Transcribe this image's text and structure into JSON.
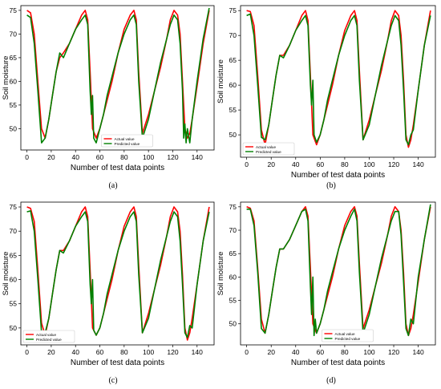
{
  "figure": {
    "panel_labels": [
      "(a)",
      "(b)",
      "(c)",
      "(d)"
    ]
  },
  "colors": {
    "actual": "#ff0000",
    "predicted": "#008000",
    "axis": "#000000"
  },
  "chart_data": [
    {
      "type": "line",
      "panel": "(a)",
      "xlabel": "Number of test data points",
      "ylabel": "Soil moisture",
      "xlim": [
        -5,
        154
      ],
      "ylim": [
        45.5,
        76
      ],
      "xticks": [
        0,
        20,
        40,
        60,
        80,
        100,
        120,
        140
      ],
      "yticks": [
        50,
        55,
        60,
        65,
        70,
        75
      ],
      "legend": "bottom-center",
      "grid": false,
      "series": [
        {
          "name": "Actual value",
          "color": "#ff0000",
          "x": [
            0,
            3,
            6,
            9,
            12,
            15,
            18,
            21,
            24,
            27,
            30,
            35,
            40,
            45,
            48,
            50,
            52,
            54,
            57,
            60,
            63,
            66,
            70,
            75,
            80,
            85,
            88,
            90,
            92,
            95,
            100,
            105,
            110,
            115,
            118,
            121,
            124,
            126,
            128,
            130,
            132,
            134,
            136,
            140,
            145,
            150
          ],
          "y": [
            75,
            74.5,
            70,
            60,
            50,
            48,
            52,
            57,
            62,
            65,
            66,
            68,
            71,
            74,
            75,
            73,
            62,
            50,
            48,
            50,
            53,
            56,
            60,
            66,
            71,
            74,
            75,
            73,
            62,
            49,
            53,
            58,
            63,
            69,
            73,
            75,
            74,
            70,
            60,
            50,
            48,
            49,
            52,
            59,
            68,
            75
          ]
        },
        {
          "name": "Predicted value",
          "color": "#008000",
          "x": [
            0,
            3,
            6,
            9,
            12,
            15,
            18,
            21,
            24,
            27,
            30,
            35,
            40,
            45,
            48,
            50,
            52,
            53,
            54,
            55,
            57,
            60,
            63,
            66,
            70,
            75,
            80,
            85,
            88,
            90,
            92,
            95,
            100,
            105,
            110,
            115,
            118,
            121,
            124,
            126,
            128,
            129,
            130,
            131,
            132,
            134,
            136,
            140,
            145,
            150
          ],
          "y": [
            74,
            73.5,
            68,
            58,
            47,
            48,
            52,
            57,
            62,
            66,
            65,
            68,
            71,
            73,
            74,
            72,
            58,
            53,
            57,
            48,
            47,
            50,
            53,
            57,
            61,
            66,
            70,
            73,
            74,
            72,
            60,
            48,
            52,
            58,
            64,
            69,
            72,
            74,
            73,
            68,
            58,
            48,
            51,
            47,
            50,
            47,
            52,
            60,
            69,
            75.5
          ]
        }
      ]
    },
    {
      "type": "line",
      "panel": "(b)",
      "xlabel": "Number of test data points",
      "ylabel": "Soil moisture",
      "xlim": [
        -5,
        154
      ],
      "ylim": [
        45.5,
        76
      ],
      "xticks": [
        0,
        20,
        40,
        60,
        80,
        100,
        120,
        140
      ],
      "yticks": [
        50,
        55,
        60,
        65,
        70,
        75
      ],
      "legend": "bottom-left",
      "grid": false,
      "series": [
        {
          "name": "Actual value",
          "color": "#ff0000",
          "x": [
            0,
            3,
            6,
            9,
            12,
            15,
            18,
            21,
            24,
            27,
            30,
            35,
            40,
            45,
            48,
            50,
            52,
            54,
            57,
            60,
            63,
            66,
            70,
            75,
            80,
            85,
            88,
            90,
            92,
            95,
            100,
            105,
            110,
            115,
            118,
            121,
            124,
            126,
            128,
            130,
            132,
            134,
            136,
            140,
            145,
            150
          ],
          "y": [
            75,
            74.8,
            72,
            62,
            51,
            48,
            52,
            57,
            62,
            66,
            66,
            68,
            71,
            74,
            75,
            73,
            62,
            50,
            48,
            50,
            53,
            56,
            60,
            66,
            71,
            74,
            75,
            73,
            63,
            49,
            53,
            58,
            63,
            69,
            73,
            75,
            74,
            70,
            61,
            50,
            47.5,
            49,
            52,
            59,
            68,
            75
          ]
        },
        {
          "name": "Predicted value",
          "color": "#008000",
          "x": [
            0,
            3,
            6,
            9,
            12,
            15,
            18,
            21,
            24,
            27,
            30,
            35,
            40,
            45,
            48,
            50,
            52,
            53,
            54,
            55,
            57,
            60,
            63,
            66,
            70,
            75,
            80,
            85,
            88,
            90,
            92,
            95,
            100,
            105,
            110,
            115,
            118,
            121,
            124,
            126,
            128,
            130,
            132,
            134,
            136,
            140,
            145,
            150
          ],
          "y": [
            74,
            74.3,
            70,
            60,
            49.5,
            49,
            52,
            57,
            62,
            66,
            65.5,
            68,
            71,
            73,
            74,
            72,
            60,
            56,
            61,
            50,
            48.5,
            50,
            53,
            57,
            61,
            66,
            70,
            73,
            74,
            72,
            61,
            49,
            52,
            58,
            64,
            69,
            72,
            74,
            73,
            68,
            59,
            49,
            48,
            50,
            51,
            59,
            68,
            74
          ]
        }
      ]
    },
    {
      "type": "line",
      "panel": "(c)",
      "xlabel": "Number of test data points",
      "ylabel": "Soil moisture",
      "xlim": [
        -5,
        154
      ],
      "ylim": [
        46.5,
        76
      ],
      "xticks": [
        0,
        20,
        40,
        60,
        80,
        100,
        120,
        140
      ],
      "yticks": [
        50,
        55,
        60,
        65,
        70,
        75
      ],
      "legend": "bottom-left",
      "grid": false,
      "series": [
        {
          "name": "Actual value",
          "color": "#ff0000",
          "x": [
            0,
            3,
            6,
            9,
            12,
            15,
            18,
            21,
            24,
            27,
            30,
            35,
            40,
            45,
            48,
            50,
            52,
            54,
            57,
            60,
            63,
            66,
            70,
            75,
            80,
            85,
            88,
            90,
            92,
            95,
            100,
            105,
            110,
            115,
            118,
            121,
            124,
            126,
            128,
            130,
            132,
            134,
            136,
            140,
            145,
            150
          ],
          "y": [
            75,
            74.7,
            72,
            62,
            51,
            48.5,
            52,
            57,
            62,
            66,
            66,
            68,
            71,
            74,
            75,
            73,
            62,
            50,
            48.5,
            50,
            53,
            56,
            60,
            66,
            71,
            74,
            75,
            73,
            63,
            49,
            53,
            58,
            63,
            69,
            73,
            75,
            74,
            70,
            61,
            50,
            47.5,
            49,
            52,
            59,
            68,
            75
          ]
        },
        {
          "name": "Predicted value",
          "color": "#008000",
          "x": [
            0,
            3,
            6,
            9,
            12,
            15,
            18,
            21,
            24,
            27,
            30,
            35,
            40,
            45,
            48,
            50,
            52,
            53,
            54,
            55,
            57,
            60,
            63,
            66,
            70,
            75,
            80,
            85,
            88,
            90,
            92,
            95,
            100,
            105,
            110,
            115,
            118,
            121,
            124,
            126,
            128,
            130,
            132,
            134,
            136,
            140,
            145,
            150
          ],
          "y": [
            74,
            74.2,
            70,
            60,
            49,
            49,
            52,
            57,
            62,
            66,
            65.5,
            68,
            71,
            73,
            74,
            72,
            59,
            55,
            60,
            49.5,
            48.5,
            50,
            53,
            57,
            61,
            66,
            70,
            73,
            74,
            72,
            61,
            49,
            52,
            58,
            64,
            69,
            72,
            74,
            73,
            68,
            59,
            49,
            48,
            50.5,
            50,
            59,
            68,
            74
          ]
        }
      ]
    },
    {
      "type": "line",
      "panel": "(d)",
      "xlabel": "Number of test data points",
      "ylabel": "Soil moisture",
      "xlim": [
        -5,
        154
      ],
      "ylim": [
        45.5,
        76
      ],
      "xticks": [
        0,
        20,
        40,
        60,
        80,
        100,
        120,
        140
      ],
      "yticks": [
        50,
        55,
        60,
        65,
        70,
        75
      ],
      "legend": "bottom-center",
      "grid": false,
      "series": [
        {
          "name": "Actual value",
          "color": "#ff0000",
          "x": [
            0,
            3,
            6,
            9,
            12,
            15,
            18,
            21,
            24,
            27,
            30,
            35,
            40,
            45,
            48,
            50,
            52,
            54,
            57,
            60,
            63,
            66,
            70,
            75,
            80,
            85,
            88,
            90,
            92,
            95,
            100,
            105,
            110,
            115,
            118,
            121,
            124,
            126,
            128,
            130,
            132,
            134,
            136,
            140,
            145,
            150
          ],
          "y": [
            75,
            74.7,
            72,
            62,
            51,
            48,
            52,
            57,
            62,
            66,
            66,
            68,
            71,
            74,
            75,
            73,
            62,
            50,
            48,
            50,
            53,
            56,
            60,
            66,
            71,
            74,
            75,
            73,
            63,
            49,
            53,
            58,
            63,
            69,
            73,
            75,
            74,
            70,
            61,
            50,
            47.5,
            49,
            52,
            59,
            68,
            75
          ]
        },
        {
          "name": "Predicted value",
          "color": "#008000",
          "x": [
            0,
            3,
            6,
            9,
            12,
            15,
            18,
            21,
            24,
            27,
            30,
            35,
            40,
            45,
            48,
            50,
            52,
            53,
            54,
            55,
            56,
            57,
            60,
            63,
            66,
            70,
            75,
            80,
            85,
            88,
            90,
            92,
            95,
            100,
            105,
            110,
            115,
            118,
            121,
            124,
            126,
            128,
            130,
            132,
            134,
            136,
            140,
            145,
            150
          ],
          "y": [
            74.5,
            74.5,
            71,
            61,
            49,
            48,
            52,
            57,
            62,
            66,
            66,
            68,
            71,
            74,
            74.5,
            72,
            58,
            52,
            60,
            47.5,
            51,
            48,
            50,
            53,
            57,
            61,
            66,
            70,
            73,
            74.5,
            72,
            61,
            48,
            52,
            58,
            64,
            69,
            72,
            74,
            74,
            69,
            59,
            49,
            47.5,
            51,
            50,
            60,
            68,
            75.5
          ]
        }
      ]
    }
  ]
}
